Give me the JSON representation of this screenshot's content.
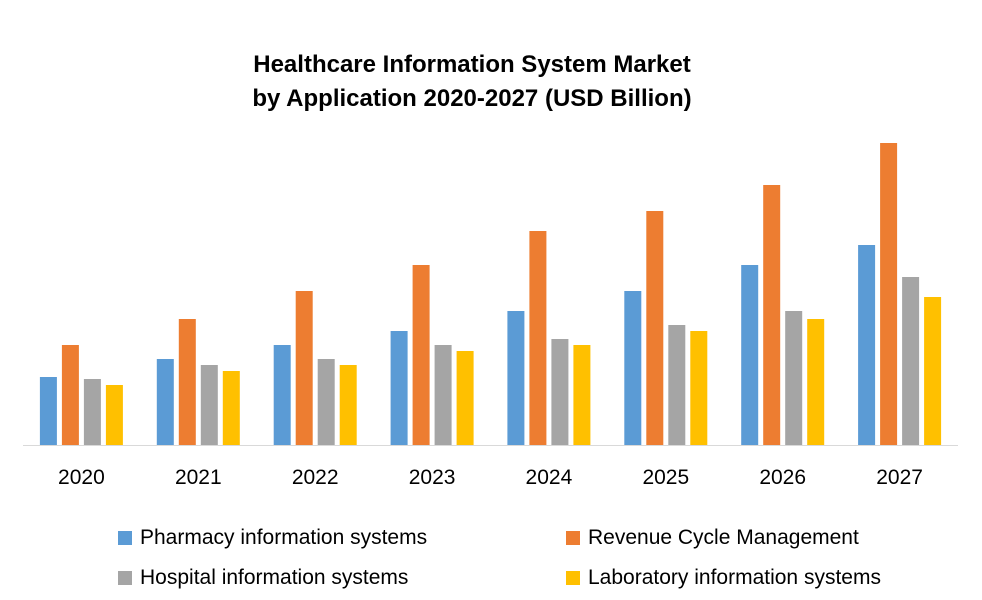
{
  "chart_data": {
    "type": "bar",
    "title": "Healthcare Information System Market by Application 2020-2027 (USD Billion)",
    "title_lines": [
      "Healthcare Information System Market",
      "by Application 2020-2027 (USD Billion)"
    ],
    "categories": [
      "2020",
      "2021",
      "2022",
      "2023",
      "2024",
      "2025",
      "2026",
      "2027"
    ],
    "series": [
      {
        "name": "Pharmacy information systems",
        "color": "#5B9BD5",
        "values": [
          3.4,
          4.3,
          5.0,
          5.7,
          6.7,
          7.7,
          9.0,
          10.0
        ]
      },
      {
        "name": "Revenue Cycle Management",
        "color": "#ED7D31",
        "values": [
          5.0,
          6.3,
          7.7,
          9.0,
          10.7,
          11.7,
          13.0,
          15.1
        ]
      },
      {
        "name": "Hospital information systems",
        "color": "#A5A5A5",
        "values": [
          3.3,
          4.0,
          4.3,
          5.0,
          5.3,
          6.0,
          6.7,
          8.4
        ]
      },
      {
        "name": "Laboratory information systems",
        "color": "#FFC000",
        "values": [
          3.0,
          3.7,
          4.0,
          4.7,
          5.0,
          5.7,
          6.3,
          7.4
        ]
      }
    ],
    "ylim": [
      0,
      16
    ],
    "grid": false,
    "axis_color": "#D9D9D9",
    "legend_position": "bottom"
  }
}
